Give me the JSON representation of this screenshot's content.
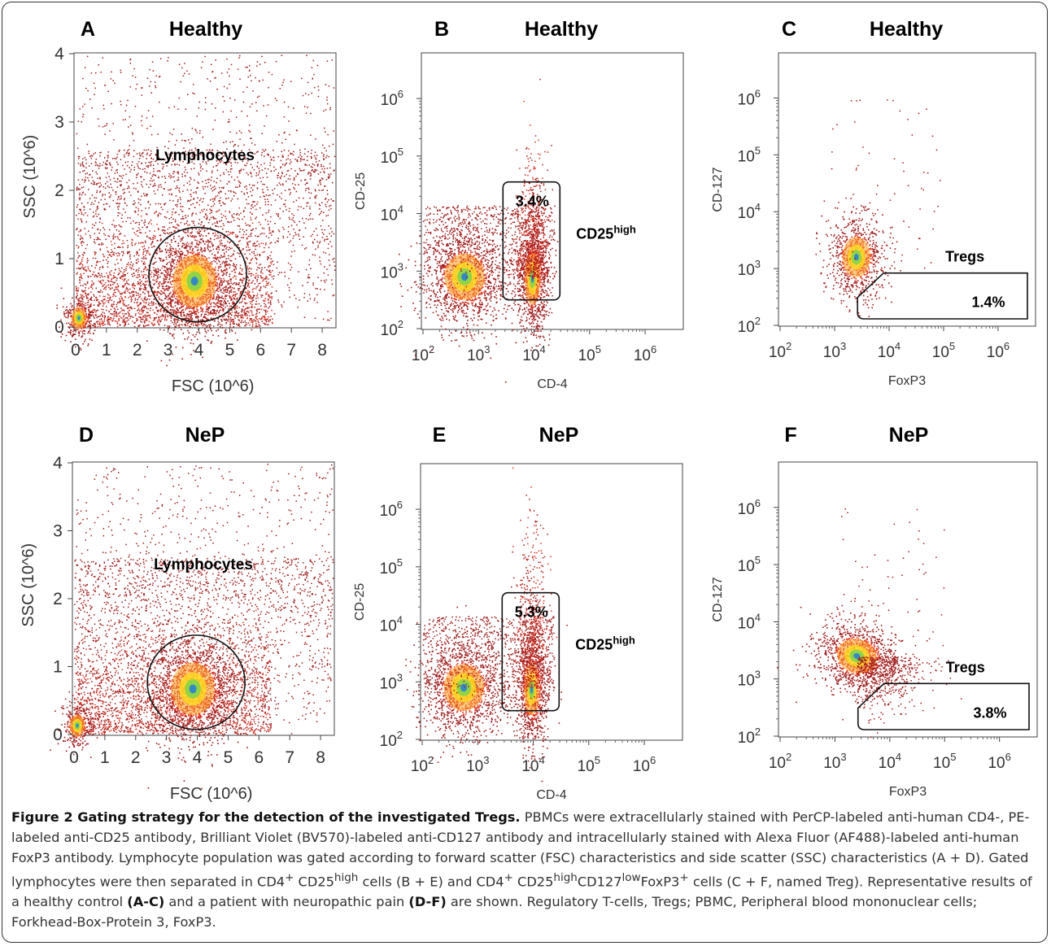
{
  "panels": [
    {
      "id": "A",
      "group": "Healthy",
      "kind": "scatter-linear",
      "xlabel": "FSC (10^6)",
      "ylabel": "SSC (10^6)",
      "xticks": [
        "0",
        "1",
        "2",
        "3",
        "4",
        "5",
        "6",
        "7",
        "8"
      ],
      "yticks": [
        "0",
        "1",
        "2",
        "3",
        "4"
      ],
      "gate_label": "Lymphocytes"
    },
    {
      "id": "B",
      "group": "Healthy",
      "kind": "scatter-log",
      "xlabel": "CD-4",
      "ylabel": "CD-25",
      "gate_label": "CD25",
      "gate_label_sup": "high",
      "gate_pct": "3.4%"
    },
    {
      "id": "C",
      "group": "Healthy",
      "kind": "scatter-log",
      "xlabel": "FoxP3",
      "ylabel": "CD-127",
      "gate_label": "Tregs",
      "gate_pct": "1.4%"
    },
    {
      "id": "D",
      "group": "NeP",
      "kind": "scatter-linear",
      "xlabel": "FSC (10^6)",
      "ylabel": "SSC (10^6)",
      "xticks": [
        "0",
        "1",
        "2",
        "3",
        "4",
        "5",
        "6",
        "7",
        "8"
      ],
      "yticks": [
        "0",
        "1",
        "2",
        "3",
        "4"
      ],
      "gate_label": "Lymphocytes"
    },
    {
      "id": "E",
      "group": "NeP",
      "kind": "scatter-log",
      "xlabel": "CD-4",
      "ylabel": "CD-25",
      "gate_label": "CD25",
      "gate_label_sup": "high",
      "gate_pct": "5.3%"
    },
    {
      "id": "F",
      "group": "NeP",
      "kind": "scatter-log",
      "xlabel": "FoxP3",
      "ylabel": "CD-127",
      "gate_label": "Tregs",
      "gate_pct": "3.8%"
    }
  ],
  "log_ticks": {
    "base": "10",
    "exponents": [
      "2",
      "3",
      "4",
      "5",
      "6"
    ]
  },
  "colors": {
    "dot_sparse": "#9e1b1b",
    "dot_dense": "#e0301e",
    "core_orange": "#ff9a1f",
    "core_yellow": "#ffe21e",
    "core_green": "#7fd34b",
    "core_blue": "#2a7fd0"
  },
  "caption": {
    "title": "Figure 2 Gating strategy for the detection of the investigated Tregs.",
    "body_1": " PBMCs were extracellularly stained with PerCP-labeled anti-human CD4-, PE-labeled anti-CD25 antibody, Brilliant Violet (BV570)-labeled anti-CD127 antibody and intracellularly stained with Alexa Fluor (AF488)-labeled anti-human FoxP3 antibody. Lymphocyte population was gated according to forward scatter (FSC) characteristics and side scatter (SSC) characteristics (A + D). Gated lymphocytes were then separated in CD4",
    "sup_plus": "+",
    "cd25": " CD25",
    "sup_high": "high",
    "body_2": " cells (B + E) and CD4",
    "cd25b": " CD25",
    "cd127": "CD127",
    "sup_low": "low",
    "foxp3": "FoxP3",
    "body_3": " cells (C + F, named Treg). Representative results of a healthy control ",
    "ref_ac": "(A-C)",
    "body_4": " and a patient with neuropathic pain ",
    "ref_df": "(D-F)",
    "body_5": " are shown. Regulatory T-cells, Tregs; PBMC, Peripheral blood mononuclear cells; Forkhead-Box-Protein 3, FoxP3."
  }
}
